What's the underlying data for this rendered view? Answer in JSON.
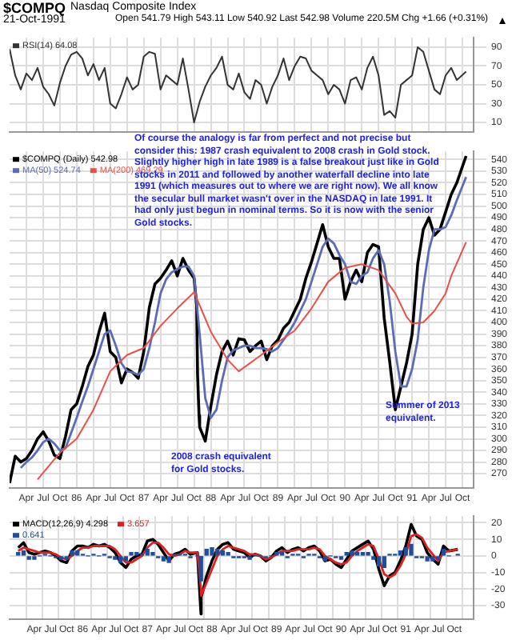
{
  "chart_data": [
    {
      "type": "line",
      "title": "$COMPQ",
      "subtitle": "Nasdaq Composite Index",
      "annotations": [
        "21-Oct-1991",
        "Open 541.79 High 543.11 Low 540.92 Last 542.98 Volume 220.5M Chg +1.66 (+0.31%)"
      ],
      "x": [
        "1985-01",
        "1985-02",
        "1985-03",
        "1985-04",
        "1985-05",
        "1985-06",
        "1985-07",
        "1985-08",
        "1985-09",
        "1985-10",
        "1985-11",
        "1985-12",
        "1986-01",
        "1986-02",
        "1986-03",
        "1986-04",
        "1986-05",
        "1986-06",
        "1986-07",
        "1986-08",
        "1986-09",
        "1986-10",
        "1986-11",
        "1986-12",
        "1987-01",
        "1987-02",
        "1987-03",
        "1987-04",
        "1987-05",
        "1987-06",
        "1987-07",
        "1987-08",
        "1987-09",
        "1987-10",
        "1987-11",
        "1987-12",
        "1988-01",
        "1988-02",
        "1988-03",
        "1988-04",
        "1988-05",
        "1988-06",
        "1988-07",
        "1988-08",
        "1988-09",
        "1988-10",
        "1988-11",
        "1988-12",
        "1989-01",
        "1989-02",
        "1989-03",
        "1989-04",
        "1989-05",
        "1989-06",
        "1989-07",
        "1989-08",
        "1989-09",
        "1989-10",
        "1989-11",
        "1989-12",
        "1990-01",
        "1990-02",
        "1990-03",
        "1990-04",
        "1990-05",
        "1990-06",
        "1990-07",
        "1990-08",
        "1990-09",
        "1990-10",
        "1990-11",
        "1990-12",
        "1991-01",
        "1991-02",
        "1991-03",
        "1991-04",
        "1991-05",
        "1991-06",
        "1991-07",
        "1991-08",
        "1991-09",
        "1991-10-21"
      ],
      "series": [
        {
          "name": "RSI(14) 64.08",
          "color": "#333333",
          "values": [
            88,
            60,
            45,
            62,
            55,
            68,
            48,
            40,
            28,
            52,
            70,
            82,
            85,
            78,
            60,
            72,
            55,
            68,
            30,
            25,
            40,
            58,
            45,
            50,
            80,
            85,
            83,
            45,
            60,
            55,
            50,
            78,
            45,
            10,
            32,
            48,
            60,
            68,
            80,
            50,
            45,
            62,
            42,
            35,
            55,
            50,
            30,
            48,
            60,
            78,
            55,
            70,
            80,
            78,
            65,
            60,
            55,
            40,
            50,
            45,
            30,
            55,
            58,
            45,
            68,
            80,
            60,
            18,
            22,
            15,
            50,
            55,
            60,
            90,
            85,
            65,
            45,
            40,
            60,
            68,
            55,
            64
          ]
        }
      ],
      "xlim": [
        "1985-01",
        "1991-12"
      ],
      "xticks": [
        {
          "value": "1985-04",
          "label": null
        },
        {
          "value": "1985-07",
          "label": null
        },
        {
          "value": "1985-10",
          "label": null
        },
        {
          "value": "1986-01",
          "label": null
        },
        {
          "value": "1986-04",
          "label": null
        },
        {
          "value": "1986-07",
          "label": null
        },
        {
          "value": "1986-10",
          "label": null
        },
        {
          "value": "1987-01",
          "label": null
        },
        {
          "value": "1987-04",
          "label": null
        },
        {
          "value": "1987-07",
          "label": null
        },
        {
          "value": "1987-10",
          "label": null
        },
        {
          "value": "1988-01",
          "label": null
        },
        {
          "value": "1988-04",
          "label": null
        },
        {
          "value": "1988-07",
          "label": null
        },
        {
          "value": "1988-10",
          "label": null
        },
        {
          "value": "1989-01",
          "label": null
        },
        {
          "value": "1989-04",
          "label": null
        },
        {
          "value": "1989-07",
          "label": null
        },
        {
          "value": "1989-10",
          "label": null
        },
        {
          "value": "1990-01",
          "label": null
        },
        {
          "value": "1990-04",
          "label": null
        },
        {
          "value": "1990-07",
          "label": null
        },
        {
          "value": "1990-10",
          "label": null
        },
        {
          "value": "1991-01",
          "label": null
        },
        {
          "value": "1991-04",
          "label": null
        },
        {
          "value": "1991-07",
          "label": null
        },
        {
          "value": "1991-10",
          "label": null
        }
      ],
      "ylim": [
        0,
        100
      ],
      "yticks": [
        10,
        30,
        50,
        70,
        90
      ],
      "grid": true,
      "legend": "top left",
      "tick_labels": "y",
      "marker": "none",
      "line_style": "solid"
    },
    {
      "type": "line",
      "annotations": [
        "Of course the analogy is far from perfect and not precise but consider this: 1987 crash equivalent to 2008 crash in Gold stock. Slightly higher high in late 1989 is a false breakout just like in Gold stocks in 2011 and followed by another waterfall decline into late 1991 (which measures out to where we are right now). We all know the secular bull market wasn't over in the NASDAQ in late 1991. It had only just begun in nominal terms. So it is now with the senior Gold stocks.",
        "2008 crash equivalent for Gold stocks.",
        "Summer of 2013 equivalent."
      ],
      "series": [
        {
          "name": "MA(200) 469.29",
          "color": "#e8504a",
          "x": [
            "1985-06",
            "1985-10",
            "1986-01",
            "1986-04",
            "1986-07",
            "1986-10",
            "1987-01",
            "1987-04",
            "1987-07",
            "1987-10",
            "1988-01",
            "1988-04",
            "1988-06",
            "1988-10",
            "1989-01",
            "1989-04",
            "1989-07",
            "1989-10",
            "1990-01",
            "1990-04",
            "1990-07",
            "1990-10",
            "1990-12",
            "1991-01",
            "1991-03",
            "1991-05",
            "1991-07",
            "1991-08",
            "1991-10-21"
          ],
          "values": [
            265,
            288,
            300,
            325,
            358,
            372,
            378,
            397,
            412,
            426,
            392,
            368,
            358,
            372,
            383,
            393,
            412,
            435,
            447,
            450,
            445,
            425,
            405,
            399,
            400,
            410,
            425,
            440,
            469
          ]
        },
        {
          "name": "MA(50) 524.74",
          "color": "#5b6bb5",
          "x": [
            "1985-03",
            "1985-04",
            "1985-05",
            "1985-06",
            "1985-07",
            "1985-08",
            "1985-09",
            "1985-10",
            "1985-11",
            "1985-12",
            "1986-01",
            "1986-02",
            "1986-03",
            "1986-04",
            "1986-05",
            "1986-06",
            "1986-07",
            "1986-08",
            "1986-09",
            "1986-10",
            "1986-11",
            "1986-12",
            "1987-01",
            "1987-02",
            "1987-03",
            "1987-04",
            "1987-05",
            "1987-06",
            "1987-07",
            "1987-08",
            "1987-09",
            "1987-10",
            "1987-11",
            "1987-12",
            "1988-01",
            "1988-02",
            "1988-03",
            "1988-04",
            "1988-05",
            "1988-06",
            "1988-07",
            "1988-08",
            "1988-09",
            "1988-10",
            "1988-11",
            "1988-12",
            "1989-01",
            "1989-02",
            "1989-03",
            "1989-04",
            "1989-05",
            "1989-06",
            "1989-07",
            "1989-08",
            "1989-09",
            "1989-10",
            "1989-11",
            "1989-12",
            "1990-01",
            "1990-02",
            "1990-03",
            "1990-04",
            "1990-05",
            "1990-06",
            "1990-07",
            "1990-08",
            "1990-09",
            "1990-10",
            "1990-11",
            "1990-12",
            "1991-01",
            "1991-02",
            "1991-03",
            "1991-04",
            "1991-05",
            "1991-06",
            "1991-07",
            "1991-08",
            "1991-09",
            "1991-10-21"
          ],
          "values": [
            275,
            280,
            284,
            290,
            297,
            300,
            296,
            290,
            292,
            305,
            318,
            332,
            345,
            360,
            375,
            390,
            393,
            380,
            365,
            358,
            357,
            355,
            360,
            378,
            400,
            425,
            437,
            443,
            446,
            448,
            448,
            440,
            390,
            335,
            318,
            325,
            350,
            370,
            376,
            378,
            380,
            380,
            378,
            378,
            377,
            375,
            378,
            385,
            392,
            400,
            410,
            420,
            435,
            450,
            465,
            472,
            468,
            458,
            450,
            435,
            433,
            440,
            443,
            455,
            462,
            450,
            418,
            375,
            345,
            345,
            360,
            385,
            430,
            462,
            480,
            480,
            482,
            492,
            505,
            525
          ]
        },
        {
          "name": "$COMPQ (Daily) 542.98",
          "color": "#000000",
          "x": [
            "1985-01",
            "1985-02",
            "1985-03",
            "1985-04",
            "1985-05",
            "1985-06",
            "1985-07",
            "1985-08",
            "1985-09",
            "1985-10",
            "1985-11",
            "1985-12",
            "1986-01",
            "1986-02",
            "1986-03",
            "1986-04",
            "1986-05",
            "1986-06",
            "1986-07",
            "1986-08",
            "1986-09",
            "1986-10",
            "1986-11",
            "1986-12",
            "1987-01",
            "1987-02",
            "1987-03",
            "1987-04",
            "1987-05",
            "1987-06",
            "1987-07",
            "1987-08",
            "1987-09",
            "1987-10-01",
            "1987-10-15",
            "1987-10-20",
            "1987-10-28",
            "1987-11",
            "1987-12",
            "1988-01",
            "1988-02",
            "1988-03",
            "1988-04",
            "1988-05",
            "1988-06",
            "1988-07",
            "1988-08",
            "1988-09",
            "1988-10",
            "1988-11",
            "1988-12",
            "1989-01",
            "1989-02",
            "1989-03",
            "1989-04",
            "1989-05",
            "1989-06",
            "1989-07",
            "1989-08",
            "1989-09",
            "1989-10",
            "1989-11",
            "1989-12",
            "1990-01",
            "1990-02",
            "1990-03",
            "1990-04",
            "1990-05",
            "1990-06",
            "1990-07",
            "1990-08",
            "1990-09",
            "1990-10",
            "1990-11",
            "1990-12",
            "1991-01",
            "1991-02",
            "1991-03",
            "1991-04",
            "1991-05",
            "1991-06",
            "1991-07",
            "1991-08",
            "1991-09",
            "1991-10-21"
          ],
          "values": [
            262,
            285,
            280,
            283,
            290,
            300,
            306,
            298,
            286,
            283,
            302,
            325,
            330,
            345,
            362,
            372,
            392,
            408,
            375,
            370,
            348,
            360,
            357,
            352,
            375,
            413,
            433,
            438,
            445,
            453,
            440,
            455,
            445,
            438,
            415,
            355,
            320,
            310,
            298,
            328,
            355,
            375,
            384,
            372,
            386,
            385,
            375,
            380,
            384,
            368,
            380,
            385,
            395,
            400,
            410,
            420,
            438,
            452,
            468,
            484,
            465,
            455,
            455,
            420,
            435,
            445,
            435,
            460,
            467,
            465,
            404,
            366,
            325,
            345,
            365,
            390,
            450,
            480,
            490,
            475,
            480,
            495,
            510,
            520,
            543
          ]
        }
      ],
      "xlim": [
        "1985-01",
        "1991-12"
      ],
      "xticks": [
        {
          "value": "1985-04",
          "label": "Apr"
        },
        {
          "value": "1985-07",
          "label": "Jul"
        },
        {
          "value": "1985-10",
          "label": "Oct"
        },
        {
          "value": "1986-01",
          "label": "86"
        },
        {
          "value": "1986-04",
          "label": "Apr"
        },
        {
          "value": "1986-07",
          "label": "Jul"
        },
        {
          "value": "1986-10",
          "label": "Oct"
        },
        {
          "value": "1987-01",
          "label": "87"
        },
        {
          "value": "1987-04",
          "label": "Apr"
        },
        {
          "value": "1987-07",
          "label": "Jul"
        },
        {
          "value": "1987-10",
          "label": "Oct"
        },
        {
          "value": "1988-01",
          "label": "88"
        },
        {
          "value": "1988-04",
          "label": "Apr"
        },
        {
          "value": "1988-07",
          "label": "Jul"
        },
        {
          "value": "1988-10",
          "label": "Oct"
        },
        {
          "value": "1989-01",
          "label": "89"
        },
        {
          "value": "1989-04",
          "label": "Apr"
        },
        {
          "value": "1989-07",
          "label": "Jul"
        },
        {
          "value": "1989-10",
          "label": "Oct"
        },
        {
          "value": "1990-01",
          "label": "90"
        },
        {
          "value": "1990-04",
          "label": "Apr"
        },
        {
          "value": "1990-07",
          "label": "Jul"
        },
        {
          "value": "1990-10",
          "label": "Oct"
        },
        {
          "value": "1991-01",
          "label": "91"
        },
        {
          "value": "1991-04",
          "label": "Apr"
        },
        {
          "value": "1991-07",
          "label": "Jul"
        },
        {
          "value": "1991-10",
          "label": "Oct"
        }
      ],
      "ylim": [
        258,
        547
      ],
      "yticks": [
        270,
        280,
        290,
        300,
        310,
        320,
        330,
        340,
        350,
        360,
        370,
        380,
        390,
        400,
        410,
        420,
        430,
        440,
        450,
        460,
        470,
        480,
        490,
        500,
        510,
        520,
        530,
        540
      ],
      "grid": true,
      "legend": "top left",
      "marker": "none",
      "line_style": "solid"
    },
    {
      "type": "line",
      "x": [
        "1985-01",
        "1985-02",
        "1985-03",
        "1985-04",
        "1985-05",
        "1985-06",
        "1985-07",
        "1985-08",
        "1985-09",
        "1985-10",
        "1985-11",
        "1985-12",
        "1986-01",
        "1986-02",
        "1986-03",
        "1986-04",
        "1986-05",
        "1986-06",
        "1986-07",
        "1986-08",
        "1986-09",
        "1986-10",
        "1986-11",
        "1986-12",
        "1987-01",
        "1987-02",
        "1987-03",
        "1987-04",
        "1987-05",
        "1987-06",
        "1987-07",
        "1987-08",
        "1987-09",
        "1987-10-10",
        "1987-10-30",
        "1987-11",
        "1987-12",
        "1988-01",
        "1988-02",
        "1988-03",
        "1988-04",
        "1988-05",
        "1988-06",
        "1988-07",
        "1988-08",
        "1988-09",
        "1988-10",
        "1988-11",
        "1988-12",
        "1989-01",
        "1989-02",
        "1989-03",
        "1989-04",
        "1989-05",
        "1989-06",
        "1989-07",
        "1989-08",
        "1989-09",
        "1989-10",
        "1989-11",
        "1989-12",
        "1990-01",
        "1990-02",
        "1990-03",
        "1990-04",
        "1990-05",
        "1990-06",
        "1990-07",
        "1990-08",
        "1990-09",
        "1990-10",
        "1990-11",
        "1990-12",
        "1991-01",
        "1991-02",
        "1991-03",
        "1991-04",
        "1991-05",
        "1991-06",
        "1991-07",
        "1991-08",
        "1991-09",
        "1991-10-21"
      ],
      "series": [
        {
          "name": "0.641",
          "type": "bar",
          "color": "#1f4e9c",
          "values": [
            2,
            3,
            -2,
            -2,
            0,
            1,
            0,
            -1,
            -2,
            -2,
            3,
            3,
            1,
            0,
            1,
            0,
            1,
            -1,
            -2,
            -4,
            -3,
            2,
            2,
            1,
            4,
            2,
            -1,
            -3,
            -4,
            1,
            1,
            1,
            -1,
            0,
            -15,
            -1,
            4,
            5,
            4,
            3,
            2,
            -1,
            -1,
            -1,
            -2,
            0,
            0,
            -1,
            0,
            2,
            2,
            -1,
            1,
            1,
            -1,
            1,
            1,
            -1,
            -3,
            0,
            -1,
            -2,
            2,
            3,
            2,
            2,
            2,
            -2,
            -6,
            -7,
            1,
            1,
            3,
            5,
            7,
            -1,
            -1,
            -3,
            -3,
            -2,
            4,
            0,
            1
          ]
        },
        {
          "name": "3.657",
          "color": "#e02020",
          "values": [
            3,
            5,
            4,
            3,
            2,
            2,
            2,
            1,
            -1,
            -2,
            0,
            3,
            5,
            5,
            6,
            6,
            6,
            6,
            4,
            0,
            -4,
            -4,
            -2,
            0,
            5,
            8,
            8,
            5,
            1,
            0,
            1,
            3,
            2,
            2,
            -20,
            -24,
            -16,
            -8,
            0,
            4,
            6,
            5,
            4,
            3,
            1,
            1,
            0,
            -2,
            -1,
            1,
            3,
            3,
            3,
            4,
            4,
            4,
            5,
            4,
            0,
            -2,
            -4,
            -5,
            -4,
            0,
            3,
            5,
            7,
            6,
            -2,
            -11,
            -13,
            -11,
            -6,
            1,
            12,
            13,
            11,
            5,
            1,
            -3,
            2,
            3,
            4
          ]
        },
        {
          "name": "MACD(12,26,9) 4.298",
          "color": "#000000",
          "values": [
            5,
            8,
            2,
            1,
            2,
            3,
            2,
            0,
            -3,
            -4,
            3,
            6,
            6,
            5,
            7,
            6,
            7,
            5,
            2,
            -4,
            -7,
            -2,
            0,
            1,
            9,
            10,
            7,
            2,
            -3,
            1,
            2,
            4,
            1,
            2,
            -35,
            -25,
            -12,
            -3,
            4,
            7,
            8,
            4,
            3,
            2,
            -1,
            1,
            0,
            -3,
            -1,
            3,
            5,
            2,
            4,
            5,
            3,
            5,
            6,
            3,
            -3,
            -2,
            -5,
            -7,
            -2,
            3,
            5,
            7,
            9,
            4,
            -8,
            -18,
            -12,
            -10,
            -3,
            6,
            19,
            12,
            10,
            2,
            -2,
            -5,
            6,
            3,
            4
          ]
        }
      ],
      "xlim": [
        "1985-01",
        "1991-12"
      ],
      "xticks": [
        {
          "value": "1985-04",
          "label": "Apr"
        },
        {
          "value": "1985-07",
          "label": "Jul"
        },
        {
          "value": "1985-10",
          "label": "Oct"
        },
        {
          "value": "1986-01",
          "label": "86"
        },
        {
          "value": "1986-04",
          "label": "Apr"
        },
        {
          "value": "1986-07",
          "label": "Jul"
        },
        {
          "value": "1986-10",
          "label": "Oct"
        },
        {
          "value": "1987-01",
          "label": "87"
        },
        {
          "value": "1987-04",
          "label": "Apr"
        },
        {
          "value": "1987-07",
          "label": "Jul"
        },
        {
          "value": "1987-10",
          "label": "Oct"
        },
        {
          "value": "1988-01",
          "label": "88"
        },
        {
          "value": "1988-04",
          "label": "Apr"
        },
        {
          "value": "1988-07",
          "label": "Jul"
        },
        {
          "value": "1988-10",
          "label": "Oct"
        },
        {
          "value": "1989-01",
          "label": "89"
        },
        {
          "value": "1989-04",
          "label": "Apr"
        },
        {
          "value": "1989-07",
          "label": "Jul"
        },
        {
          "value": "1989-10",
          "label": "Oct"
        },
        {
          "value": "1990-01",
          "label": "90"
        },
        {
          "value": "1990-04",
          "label": "Apr"
        },
        {
          "value": "1990-07",
          "label": "Jul"
        },
        {
          "value": "1990-10",
          "label": "Oct"
        },
        {
          "value": "1991-01",
          "label": "91"
        },
        {
          "value": "1991-04",
          "label": "Apr"
        },
        {
          "value": "1991-07",
          "label": "Jul"
        },
        {
          "value": "1991-10",
          "label": "Oct"
        }
      ],
      "ylim": [
        -38,
        24
      ],
      "yticks": [
        -30,
        -20,
        -10,
        0,
        10,
        20
      ],
      "grid": true,
      "legend": "top left",
      "marker": "none",
      "line_style": "solid"
    }
  ]
}
